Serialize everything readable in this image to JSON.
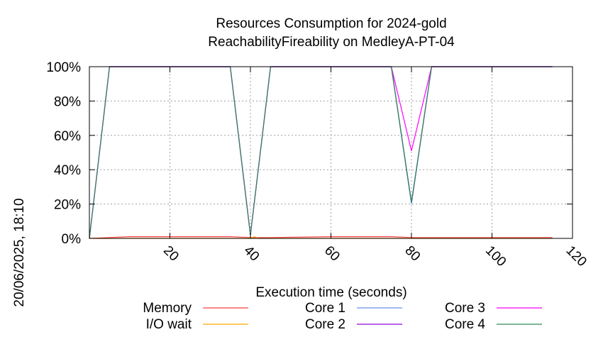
{
  "chart_data": {
    "type": "line",
    "title": "Resources Consumption for 2024-gold",
    "subtitle": "ReachabilityFireability on MedleyA-PT-04",
    "xlabel": "Execution time (seconds)",
    "ylabel": "",
    "timestamp": "20/06/2025, 18:10",
    "xlim": [
      0,
      120
    ],
    "ylim": [
      0,
      100
    ],
    "x_ticks": [
      20,
      40,
      60,
      80,
      100,
      120
    ],
    "y_ticks": [
      0,
      20,
      40,
      60,
      80,
      100
    ],
    "x_tick_labels": [
      "20",
      "40",
      "60",
      "80",
      "100",
      "120"
    ],
    "y_tick_labels": [
      "0%",
      "20%",
      "40%",
      "60%",
      "80%",
      "100%"
    ],
    "grid": true,
    "legend_position": "bottom",
    "series": [
      {
        "name": "Memory",
        "color": "#ff4040",
        "points": [
          [
            0,
            0
          ],
          [
            5,
            0.5
          ],
          [
            10,
            1
          ],
          [
            35,
            1
          ],
          [
            40,
            0.5
          ],
          [
            45,
            0.5
          ],
          [
            60,
            1
          ],
          [
            75,
            1
          ],
          [
            80,
            0.5
          ],
          [
            115,
            0.5
          ]
        ]
      },
      {
        "name": "I/O wait",
        "color": "#ffa500",
        "points": [
          [
            0,
            0
          ],
          [
            40,
            0
          ],
          [
            41,
            1
          ],
          [
            42,
            0
          ],
          [
            115,
            0
          ]
        ]
      },
      {
        "name": "Core 1",
        "color": "#6495ed",
        "points": [
          [
            0,
            0
          ],
          [
            5,
            100
          ],
          [
            35,
            100
          ],
          [
            40,
            2
          ],
          [
            45,
            100
          ],
          [
            75,
            100
          ],
          [
            80,
            20
          ],
          [
            85,
            100
          ],
          [
            115,
            100
          ]
        ]
      },
      {
        "name": "Core 2",
        "color": "#9400d3",
        "points": [
          [
            0,
            0
          ],
          [
            5,
            100
          ],
          [
            35,
            100
          ],
          [
            40,
            2
          ],
          [
            45,
            100
          ],
          [
            75,
            100
          ],
          [
            80,
            21
          ],
          [
            85,
            100
          ],
          [
            115,
            100
          ]
        ]
      },
      {
        "name": "Core 3",
        "color": "#ff00ff",
        "points": [
          [
            0,
            0
          ],
          [
            5,
            100
          ],
          [
            35,
            100
          ],
          [
            40,
            2
          ],
          [
            45,
            100
          ],
          [
            75,
            100
          ],
          [
            80,
            51
          ],
          [
            85,
            100
          ],
          [
            115,
            100
          ]
        ]
      },
      {
        "name": "Core 4",
        "color": "#2e8b57",
        "points": [
          [
            0,
            0
          ],
          [
            5,
            100
          ],
          [
            35,
            100
          ],
          [
            40,
            2
          ],
          [
            45,
            100
          ],
          [
            75,
            100
          ],
          [
            80,
            21
          ],
          [
            85,
            100
          ],
          [
            115,
            100
          ]
        ]
      }
    ]
  }
}
